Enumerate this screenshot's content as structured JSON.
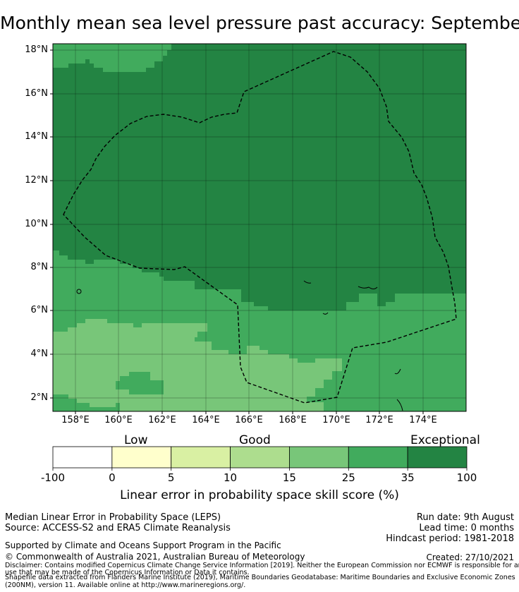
{
  "title": "Monthly mean sea level pressure past accuracy: September",
  "map": {
    "lat_labels": [
      "18°N",
      "16°N",
      "14°N",
      "12°N",
      "10°N",
      "8°N",
      "6°N",
      "4°N",
      "2°N"
    ],
    "lon_labels": [
      "158°E",
      "160°E",
      "162°E",
      "164°E",
      "166°E",
      "168°E",
      "170°E",
      "172°E",
      "174°E"
    ],
    "boundary_style": "dashed",
    "class_colors": {
      "exceptional": "#238443",
      "very_good": "#41ab5d",
      "good": "#78c679",
      "fair": "#addd8e"
    }
  },
  "legend": {
    "categories": [
      "Low",
      "Good",
      "Exceptional"
    ],
    "bins": [
      {
        "from": -100,
        "to": 0,
        "color": "#ffffff"
      },
      {
        "from": 0,
        "to": 5,
        "color": "#ffffcc"
      },
      {
        "from": 5,
        "to": 10,
        "color": "#d9f0a3"
      },
      {
        "from": 10,
        "to": 15,
        "color": "#addd8e"
      },
      {
        "from": 15,
        "to": 25,
        "color": "#78c679"
      },
      {
        "from": 25,
        "to": 35,
        "color": "#41ab5d"
      },
      {
        "from": 35,
        "to": 100,
        "color": "#238443"
      }
    ],
    "tick_labels": [
      "-100",
      "0",
      "5",
      "10",
      "15",
      "25",
      "35",
      "100"
    ],
    "axis_label": "Linear error in probability space skill score (%)"
  },
  "footer": {
    "line1": "Median Linear Error in Probability Space (LEPS)",
    "line2": "Source: ACCESS-S2 and ERA5 Climate Reanalysis",
    "support": "Supported by Climate and Oceans Support Program in the Pacific",
    "copyright": "© Commonwealth of Australia 2021, Australian Bureau of Meteorology",
    "run_date": "Run date: 9th August",
    "lead_time": "Lead time: 0 months",
    "hindcast": "Hindcast period: 1981-2018",
    "created": "Created: 27/10/2021",
    "disclaimer1": "Disclaimer: Contains modified Copernicus Climate Change Service Information [2019]. Neither the European Commission nor ECMWF is responsible for any",
    "disclaimer2": "use that may be made of the Copernicus Information or Data it contains.",
    "shapefile1": "Shapefile data extracted from Flanders Marine Institute (2019), Maritime Boundaries Geodatabase: Maritime Boundaries and Exclusive Economic Zones",
    "shapefile2": "(200NM), version 11. Available online at http://www.marineregions.org/."
  }
}
